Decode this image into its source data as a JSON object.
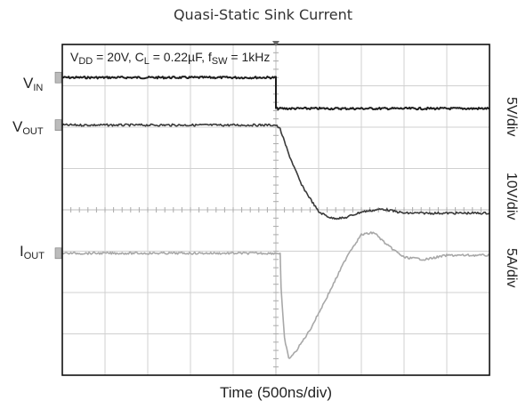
{
  "chart_data": {
    "type": "line",
    "title": "Quasi-Static Sink Current",
    "xlabel": "Time (500ns/div)",
    "annotation": {
      "vdd_label": "V",
      "vdd_sub": "DD",
      "vdd_val": " = 20V, C",
      "cl_sub": "L",
      "cl_val": " = 0.22µF, f",
      "fsw_sub": "SW",
      "fsw_val": " = 1kHz"
    },
    "grid": true,
    "divisions": {
      "x": 10,
      "y": 8
    },
    "xlim_div": [
      0,
      10
    ],
    "ylim_div": [
      -4,
      4
    ],
    "series": [
      {
        "name": "VIN",
        "name_main": "V",
        "name_sub": "IN",
        "scale": "5V/div",
        "color": "#1e1e1e",
        "points_div": [
          [
            0,
            3.2
          ],
          [
            5.0,
            3.2
          ],
          [
            5.0,
            2.45
          ],
          [
            10,
            2.45
          ]
        ]
      },
      {
        "name": "VOUT",
        "name_main": "V",
        "name_sub": "OUT",
        "scale": "10V/div",
        "color": "#3a3a3a",
        "points_div": [
          [
            0,
            2.05
          ],
          [
            5.0,
            2.05
          ],
          [
            5.1,
            1.95
          ],
          [
            5.3,
            1.35
          ],
          [
            5.6,
            0.6
          ],
          [
            6.0,
            -0.05
          ],
          [
            6.3,
            -0.2
          ],
          [
            6.6,
            -0.2
          ],
          [
            7.0,
            -0.05
          ],
          [
            7.5,
            0.02
          ],
          [
            8.0,
            -0.08
          ],
          [
            10,
            -0.08
          ]
        ]
      },
      {
        "name": "IOUT",
        "name_main": "I",
        "name_sub": "OUT",
        "scale": "5A/div",
        "color": "#a8a8a8",
        "points_div": [
          [
            0,
            -1.05
          ],
          [
            5.1,
            -1.05
          ],
          [
            5.12,
            -1.9
          ],
          [
            5.2,
            -3.1
          ],
          [
            5.3,
            -3.6
          ],
          [
            5.45,
            -3.45
          ],
          [
            5.8,
            -2.9
          ],
          [
            6.2,
            -2.1
          ],
          [
            6.7,
            -1.05
          ],
          [
            7.0,
            -0.6
          ],
          [
            7.3,
            -0.55
          ],
          [
            7.6,
            -0.85
          ],
          [
            8.0,
            -1.15
          ],
          [
            8.5,
            -1.2
          ],
          [
            9.0,
            -1.1
          ],
          [
            10,
            -1.1
          ]
        ]
      }
    ]
  }
}
